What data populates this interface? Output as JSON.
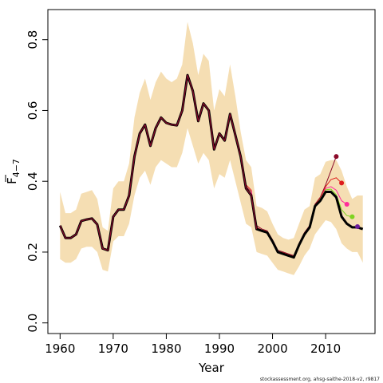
{
  "chart_data": {
    "type": "line",
    "title": "",
    "xlabel": "Year",
    "ylabel": {
      "main": "F",
      "sub": "4−7"
    },
    "xlim": [
      1957.7,
      2019.3
    ],
    "ylim": [
      -0.03,
      0.885
    ],
    "x_ticks": [
      1960,
      1970,
      1980,
      1990,
      2000,
      2010
    ],
    "y_ticks": [
      0.0,
      0.2,
      0.4,
      0.6,
      0.8
    ],
    "y_tick_labels": [
      "0.0",
      "0.2",
      "0.4",
      "0.6",
      "0.8"
    ],
    "grid": false,
    "legend": "none",
    "colors": {
      "band": "#f5deb3",
      "main_line": "#000000",
      "main_line_overlay": "#8b0a2a"
    },
    "confidence_band": {
      "x": [
        1960,
        1961,
        1962,
        1963,
        1964,
        1965,
        1966,
        1967,
        1968,
        1969,
        1970,
        1971,
        1972,
        1973,
        1974,
        1975,
        1976,
        1977,
        1978,
        1979,
        1980,
        1981,
        1982,
        1983,
        1984,
        1985,
        1986,
        1987,
        1988,
        1989,
        1990,
        1991,
        1992,
        1993,
        1994,
        1995,
        1996,
        1997,
        1998,
        1999,
        2000,
        2001,
        2002,
        2003,
        2004,
        2005,
        2006,
        2007,
        2008,
        2009,
        2010,
        2011,
        2012,
        2013,
        2014,
        2015,
        2016,
        2017
      ],
      "lower": [
        0.18,
        0.17,
        0.17,
        0.18,
        0.21,
        0.215,
        0.215,
        0.2,
        0.15,
        0.145,
        0.23,
        0.245,
        0.245,
        0.28,
        0.36,
        0.41,
        0.43,
        0.39,
        0.44,
        0.46,
        0.45,
        0.44,
        0.44,
        0.48,
        0.55,
        0.5,
        0.45,
        0.48,
        0.46,
        0.38,
        0.42,
        0.41,
        0.46,
        0.4,
        0.34,
        0.28,
        0.27,
        0.2,
        0.195,
        0.19,
        0.17,
        0.15,
        0.145,
        0.14,
        0.135,
        0.16,
        0.19,
        0.21,
        0.25,
        0.27,
        0.29,
        0.285,
        0.265,
        0.225,
        0.21,
        0.2,
        0.2,
        0.17
      ],
      "upper": [
        0.37,
        0.31,
        0.31,
        0.32,
        0.365,
        0.37,
        0.375,
        0.35,
        0.27,
        0.26,
        0.38,
        0.4,
        0.4,
        0.45,
        0.58,
        0.65,
        0.69,
        0.63,
        0.68,
        0.71,
        0.69,
        0.68,
        0.69,
        0.73,
        0.85,
        0.79,
        0.7,
        0.76,
        0.74,
        0.6,
        0.66,
        0.64,
        0.73,
        0.64,
        0.54,
        0.46,
        0.44,
        0.33,
        0.325,
        0.315,
        0.28,
        0.25,
        0.24,
        0.235,
        0.24,
        0.28,
        0.32,
        0.33,
        0.41,
        0.42,
        0.455,
        0.46,
        0.46,
        0.43,
        0.385,
        0.35,
        0.36,
        0.36
      ]
    },
    "series": [
      {
        "x": [
          1960,
          1961,
          1962,
          1963,
          1964,
          1965,
          1966,
          1967,
          1968,
          1969,
          1970,
          1971,
          1972,
          1973,
          1974,
          1975,
          1976,
          1977,
          1978,
          1979,
          1980,
          1981,
          1982,
          1983,
          1984,
          1985,
          1986,
          1987,
          1988,
          1989,
          1990,
          1991,
          1992,
          1993,
          1994,
          1995,
          1996,
          1997,
          1998,
          1999,
          2000,
          2001,
          2002,
          2003,
          2004,
          2005,
          2006,
          2007,
          2008,
          2009,
          2010,
          2011,
          2012,
          2013,
          2014,
          2015,
          2016,
          2017
        ],
        "values": [
          0.275,
          0.24,
          0.24,
          0.25,
          0.288,
          0.292,
          0.295,
          0.278,
          0.21,
          0.205,
          0.3,
          0.32,
          0.32,
          0.36,
          0.47,
          0.535,
          0.56,
          0.5,
          0.55,
          0.58,
          0.565,
          0.56,
          0.558,
          0.6,
          0.7,
          0.655,
          0.57,
          0.62,
          0.6,
          0.49,
          0.535,
          0.515,
          0.59,
          0.53,
          0.47,
          0.38,
          0.36,
          0.265,
          0.26,
          0.255,
          0.23,
          0.2,
          0.195,
          0.19,
          0.185,
          0.22,
          0.25,
          0.27,
          0.33,
          0.345,
          0.37,
          0.37,
          0.355,
          0.3,
          0.28,
          0.27,
          0.27,
          0.265
        ]
      },
      {
        "x": [
          1994,
          1995,
          1996,
          1997,
          1998,
          1999,
          2000,
          2001,
          2002,
          2003,
          2004,
          2005,
          2006,
          2007,
          2008,
          2009,
          2010,
          2011,
          2012
        ],
        "values": [
          0.47,
          0.385,
          0.37,
          0.275,
          0.265,
          0.26,
          0.235,
          0.205,
          0.2,
          0.195,
          0.19,
          0.225,
          0.255,
          0.275,
          0.335,
          0.355,
          0.39,
          0.43,
          0.47
        ],
        "end_marker": true,
        "color": "#8b0a2a"
      },
      {
        "x": [
          1995,
          1996,
          1997,
          1998,
          1999,
          2000,
          2001,
          2002,
          2003,
          2004,
          2005,
          2006,
          2007,
          2008,
          2009,
          2010,
          2011,
          2012,
          2013
        ],
        "values": [
          0.39,
          0.375,
          0.27,
          0.262,
          0.258,
          0.232,
          0.202,
          0.198,
          0.193,
          0.188,
          0.222,
          0.252,
          0.272,
          0.332,
          0.352,
          0.385,
          0.405,
          0.41,
          0.395
        ],
        "end_marker": true,
        "color": "#dd1c1c"
      },
      {
        "x": [
          1996,
          1997,
          1998,
          1999,
          2000,
          2001,
          2002,
          2003,
          2004,
          2005,
          2006,
          2007,
          2008,
          2009,
          2010,
          2011,
          2012,
          2013,
          2014
        ],
        "values": [
          0.372,
          0.268,
          0.26,
          0.256,
          0.23,
          0.2,
          0.196,
          0.191,
          0.186,
          0.22,
          0.25,
          0.27,
          0.33,
          0.35,
          0.38,
          0.385,
          0.375,
          0.345,
          0.335
        ],
        "end_marker": true,
        "color": "#ff2d9b"
      },
      {
        "x": [
          1997,
          1998,
          1999,
          2000,
          2001,
          2002,
          2003,
          2004,
          2005,
          2006,
          2007,
          2008,
          2009,
          2010,
          2011,
          2012,
          2013,
          2014,
          2015
        ],
        "values": [
          0.267,
          0.26,
          0.256,
          0.23,
          0.2,
          0.196,
          0.191,
          0.186,
          0.22,
          0.25,
          0.27,
          0.33,
          0.35,
          0.376,
          0.378,
          0.362,
          0.32,
          0.303,
          0.3
        ],
        "end_marker": true,
        "color": "#7ed321"
      },
      {
        "x": [
          1998,
          1999,
          2000,
          2001,
          2002,
          2003,
          2004,
          2005,
          2006,
          2007,
          2008,
          2009,
          2010,
          2011,
          2012,
          2013,
          2014,
          2015,
          2016
        ],
        "values": [
          0.26,
          0.255,
          0.23,
          0.2,
          0.195,
          0.19,
          0.185,
          0.22,
          0.25,
          0.27,
          0.33,
          0.345,
          0.372,
          0.372,
          0.358,
          0.305,
          0.282,
          0.272,
          0.272
        ],
        "end_marker": true,
        "color": "#6a1b9a"
      }
    ],
    "footer_text": "stockassessment.org, ahsg-saithe-2018-v2, r9817"
  }
}
